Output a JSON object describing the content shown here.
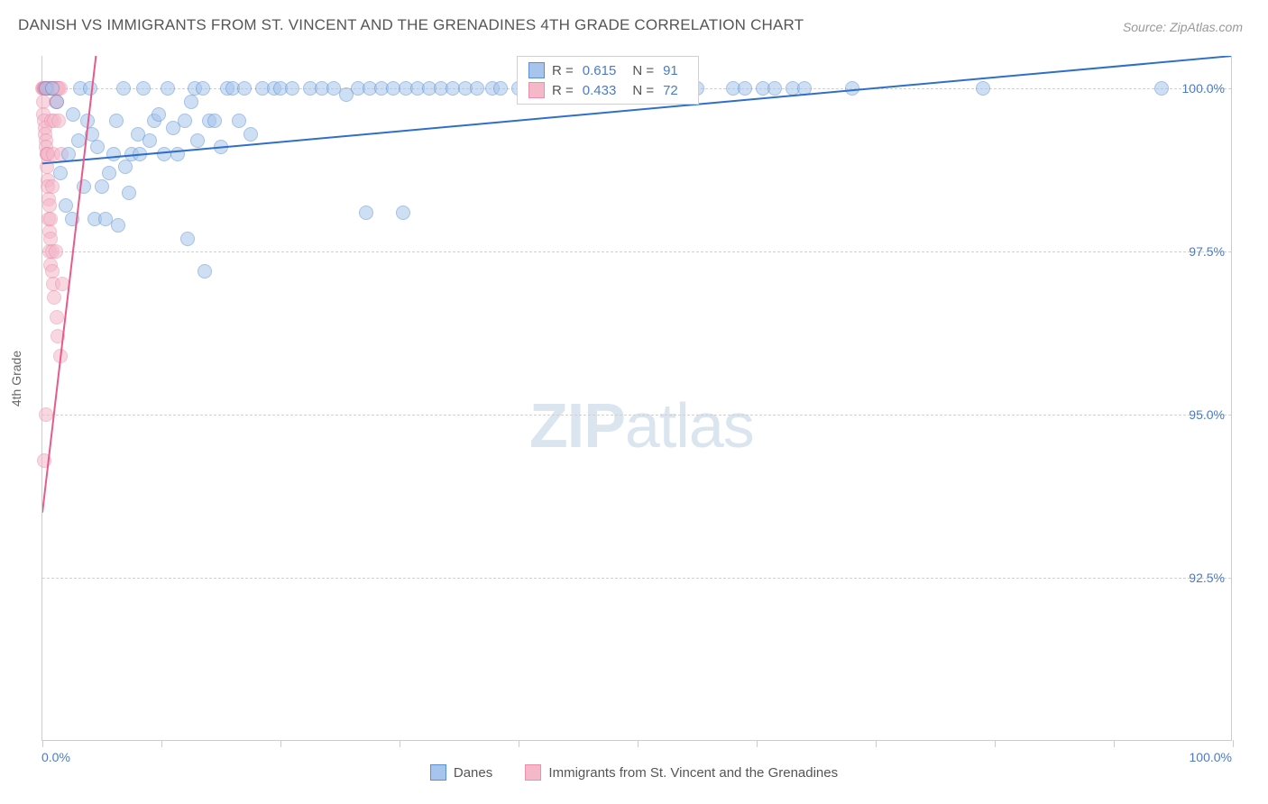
{
  "title": "DANISH VS IMMIGRANTS FROM ST. VINCENT AND THE GRENADINES 4TH GRADE CORRELATION CHART",
  "source_label": "Source:",
  "source_name": "ZipAtlas.com",
  "watermark_bold": "ZIP",
  "watermark_light": "atlas",
  "chart": {
    "type": "scatter",
    "background_color": "#ffffff",
    "grid_color": "#d0d0d0",
    "axis_color": "#cccccc",
    "tick_label_color": "#4a7bc8",
    "axis_title_color": "#666666",
    "font_family": "Arial",
    "title_fontsize": 17,
    "label_fontsize": 14,
    "yaxis_title": "4th Grade",
    "xlim": [
      0,
      100
    ],
    "ylim": [
      90,
      100.5
    ],
    "xticks": [
      0,
      10,
      20,
      30,
      40,
      50,
      60,
      70,
      80,
      90,
      100
    ],
    "xtick_labels": {
      "0": "0.0%",
      "100": "100.0%"
    },
    "yticks": [
      92.5,
      95.0,
      97.5,
      100.0
    ],
    "ytick_labels": [
      "92.5%",
      "95.0%",
      "97.5%",
      "100.0%"
    ],
    "marker_radius": 8,
    "marker_opacity": 0.55,
    "series": [
      {
        "name": "Danes",
        "color_fill": "#a7c5ec",
        "color_stroke": "#5a8fd6",
        "trendline_color": "#2f6fc9",
        "trendline_width": 2,
        "trend": {
          "x1": 0,
          "y1": 98.85,
          "x2": 100,
          "y2": 100.5
        },
        "stats": {
          "R": "0.615",
          "N": "91"
        },
        "points": [
          [
            0.3,
            100.0
          ],
          [
            0.8,
            100.0
          ],
          [
            1.2,
            99.8
          ],
          [
            1.5,
            98.7
          ],
          [
            2.0,
            98.2
          ],
          [
            2.2,
            99.0
          ],
          [
            2.5,
            98.0
          ],
          [
            2.6,
            99.6
          ],
          [
            3.0,
            99.2
          ],
          [
            3.2,
            100.0
          ],
          [
            3.5,
            98.5
          ],
          [
            3.8,
            99.5
          ],
          [
            4.0,
            100.0
          ],
          [
            4.2,
            99.3
          ],
          [
            4.4,
            98.0
          ],
          [
            4.6,
            99.1
          ],
          [
            5.0,
            98.5
          ],
          [
            5.3,
            98.0
          ],
          [
            5.6,
            98.7
          ],
          [
            6.0,
            99.0
          ],
          [
            6.2,
            99.5
          ],
          [
            6.4,
            97.9
          ],
          [
            6.8,
            100.0
          ],
          [
            7.0,
            98.8
          ],
          [
            7.3,
            98.4
          ],
          [
            7.5,
            99.0
          ],
          [
            8.0,
            99.3
          ],
          [
            8.2,
            99.0
          ],
          [
            8.5,
            100.0
          ],
          [
            9.0,
            99.2
          ],
          [
            9.4,
            99.5
          ],
          [
            9.8,
            99.6
          ],
          [
            10.2,
            99.0
          ],
          [
            10.5,
            100.0
          ],
          [
            11.0,
            99.4
          ],
          [
            11.4,
            99.0
          ],
          [
            12.0,
            99.5
          ],
          [
            12.2,
            97.7
          ],
          [
            12.5,
            99.8
          ],
          [
            12.8,
            100.0
          ],
          [
            13.0,
            99.2
          ],
          [
            13.5,
            100.0
          ],
          [
            13.6,
            97.2
          ],
          [
            14.0,
            99.5
          ],
          [
            14.5,
            99.5
          ],
          [
            15.0,
            99.1
          ],
          [
            15.5,
            100.0
          ],
          [
            16.0,
            100.0
          ],
          [
            16.5,
            99.5
          ],
          [
            17.0,
            100.0
          ],
          [
            17.5,
            99.3
          ],
          [
            18.5,
            100.0
          ],
          [
            19.5,
            100.0
          ],
          [
            20.0,
            100.0
          ],
          [
            21.0,
            100.0
          ],
          [
            22.5,
            100.0
          ],
          [
            23.5,
            100.0
          ],
          [
            24.5,
            100.0
          ],
          [
            25.5,
            99.9
          ],
          [
            26.5,
            100.0
          ],
          [
            27.2,
            98.1
          ],
          [
            27.5,
            100.0
          ],
          [
            28.5,
            100.0
          ],
          [
            29.5,
            100.0
          ],
          [
            30.3,
            98.1
          ],
          [
            30.5,
            100.0
          ],
          [
            31.5,
            100.0
          ],
          [
            32.5,
            100.0
          ],
          [
            33.5,
            100.0
          ],
          [
            34.5,
            100.0
          ],
          [
            35.5,
            100.0
          ],
          [
            36.5,
            100.0
          ],
          [
            37.8,
            100.0
          ],
          [
            38.5,
            100.0
          ],
          [
            40.0,
            100.0
          ],
          [
            42.0,
            100.0
          ],
          [
            44.0,
            100.0
          ],
          [
            46.0,
            100.0
          ],
          [
            48.0,
            100.0
          ],
          [
            50.0,
            100.0
          ],
          [
            52.0,
            100.0
          ],
          [
            55.0,
            100.0
          ],
          [
            58.0,
            100.0
          ],
          [
            59.0,
            100.0
          ],
          [
            60.5,
            100.0
          ],
          [
            61.5,
            100.0
          ],
          [
            63.0,
            100.0
          ],
          [
            64.0,
            100.0
          ],
          [
            68.0,
            100.0
          ],
          [
            79.0,
            100.0
          ],
          [
            94.0,
            100.0
          ]
        ]
      },
      {
        "name": "Immigrants from St. Vincent and the Grenadines",
        "color_fill": "#f4b8c9",
        "color_stroke": "#ea8fad",
        "trendline_color": "#e75a8a",
        "trendline_width": 2,
        "trend": {
          "x1": 0,
          "y1": 93.5,
          "x2": 4.5,
          "y2": 100.5
        },
        "stats": {
          "R": "0.433",
          "N": "72"
        },
        "points": [
          [
            0.0,
            100.0
          ],
          [
            0.05,
            99.8
          ],
          [
            0.1,
            100.0
          ],
          [
            0.1,
            99.6
          ],
          [
            0.12,
            100.0
          ],
          [
            0.15,
            99.5
          ],
          [
            0.18,
            100.0
          ],
          [
            0.2,
            100.0
          ],
          [
            0.2,
            99.4
          ],
          [
            0.22,
            100.0
          ],
          [
            0.25,
            99.3
          ],
          [
            0.25,
            100.0
          ],
          [
            0.28,
            99.2
          ],
          [
            0.3,
            100.0
          ],
          [
            0.3,
            99.1
          ],
          [
            0.32,
            100.0
          ],
          [
            0.35,
            99.0
          ],
          [
            0.35,
            98.8
          ],
          [
            0.38,
            100.0
          ],
          [
            0.4,
            100.0
          ],
          [
            0.4,
            99.0
          ],
          [
            0.42,
            98.6
          ],
          [
            0.45,
            100.0
          ],
          [
            0.45,
            98.5
          ],
          [
            0.48,
            99.0
          ],
          [
            0.5,
            100.0
          ],
          [
            0.5,
            98.3
          ],
          [
            0.52,
            100.0
          ],
          [
            0.55,
            98.0
          ],
          [
            0.55,
            100.0
          ],
          [
            0.58,
            97.8
          ],
          [
            0.6,
            100.0
          ],
          [
            0.6,
            98.2
          ],
          [
            0.62,
            97.5
          ],
          [
            0.65,
            100.0
          ],
          [
            0.65,
            97.7
          ],
          [
            0.68,
            100.0
          ],
          [
            0.7,
            98.0
          ],
          [
            0.7,
            97.3
          ],
          [
            0.72,
            100.0
          ],
          [
            0.75,
            99.5
          ],
          [
            0.78,
            100.0
          ],
          [
            0.8,
            97.5
          ],
          [
            0.8,
            100.0
          ],
          [
            0.82,
            98.5
          ],
          [
            0.85,
            100.0
          ],
          [
            0.85,
            97.2
          ],
          [
            0.88,
            100.0
          ],
          [
            0.9,
            99.0
          ],
          [
            0.9,
            97.0
          ],
          [
            0.92,
            100.0
          ],
          [
            0.95,
            100.0
          ],
          [
            1.0,
            99.5
          ],
          [
            1.0,
            96.8
          ],
          [
            1.05,
            100.0
          ],
          [
            1.1,
            100.0
          ],
          [
            1.1,
            97.5
          ],
          [
            1.12,
            99.8
          ],
          [
            1.15,
            100.0
          ],
          [
            1.2,
            96.5
          ],
          [
            1.2,
            99.8
          ],
          [
            1.25,
            100.0
          ],
          [
            1.3,
            100.0
          ],
          [
            1.3,
            96.2
          ],
          [
            1.35,
            99.5
          ],
          [
            1.4,
            100.0
          ],
          [
            1.5,
            100.0
          ],
          [
            1.5,
            95.9
          ],
          [
            1.6,
            99.0
          ],
          [
            1.7,
            97.0
          ],
          [
            0.3,
            95.0
          ],
          [
            0.15,
            94.3
          ]
        ]
      }
    ],
    "legend_stats_labels": {
      "R": "R =",
      "N": "N ="
    },
    "bottom_legend": [
      {
        "label": "Danes",
        "fill": "#a7c5ec",
        "stroke": "#5a8fd6"
      },
      {
        "label": "Immigrants from St. Vincent and the Grenadines",
        "fill": "#f4b8c9",
        "stroke": "#ea8fad"
      }
    ]
  }
}
